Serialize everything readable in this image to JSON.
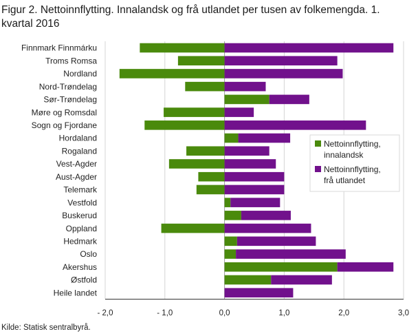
{
  "title": "Figur 2. Nettoinnflytting. Innalandsk og frå utlandet per tusen av folkemengda. 1. kvartal 2016",
  "source": "Kilde: Statisk sentralbyrå.",
  "colors": {
    "innalandsk": "#4a8a0c",
    "utlandet": "#71118c",
    "grid": "#d4d4d4",
    "axis": "#333333"
  },
  "chart_data": {
    "type": "bar",
    "orientation": "horizontal",
    "stacked": true,
    "categories": [
      "Finnmark Finnmárku",
      "Troms Romsa",
      "Nordland",
      "Nord-Trøndelag",
      "Sør-Trøndelag",
      "Møre og Romsdal",
      "Sogn og Fjordane",
      "Hordaland",
      "Rogaland",
      "Vest-Agder",
      "Aust-Agder",
      "Telemark",
      "Vestfold",
      "Buskerud",
      "Oppland",
      "Hedmark",
      "Oslo",
      "Akershus",
      "Østfold",
      "Heile landet"
    ],
    "series": [
      {
        "name": "Nettoinnflytting, innalandsk",
        "legend_lines": [
          "Nettoinnflytting,",
          "innalandsk"
        ],
        "values": [
          -1.42,
          -0.78,
          -1.76,
          -0.66,
          0.75,
          -1.02,
          -1.34,
          0.23,
          -0.64,
          -0.93,
          -0.44,
          -0.47,
          0.1,
          0.28,
          -1.06,
          0.21,
          0.19,
          1.89,
          0.78,
          0.0
        ]
      },
      {
        "name": "Nettoinnflytting, frå utlandet",
        "legend_lines": [
          "Nettoinnflytting,",
          "frå utlandet"
        ],
        "values": [
          2.83,
          1.89,
          1.98,
          0.69,
          0.67,
          0.49,
          2.37,
          0.87,
          0.75,
          0.86,
          1.0,
          1.0,
          0.83,
          0.83,
          1.45,
          1.32,
          1.84,
          0.94,
          1.02,
          1.15
        ]
      }
    ],
    "xlim": [
      -2.0,
      3.0
    ],
    "xticks": [
      -2.0,
      -1.0,
      0.0,
      1.0,
      2.0,
      3.0
    ],
    "xtick_labels": [
      "- 2,0",
      "- 1,0",
      "0,0",
      "1,0",
      "2,0",
      "3,0"
    ],
    "grid": true,
    "legend_position": "right"
  }
}
